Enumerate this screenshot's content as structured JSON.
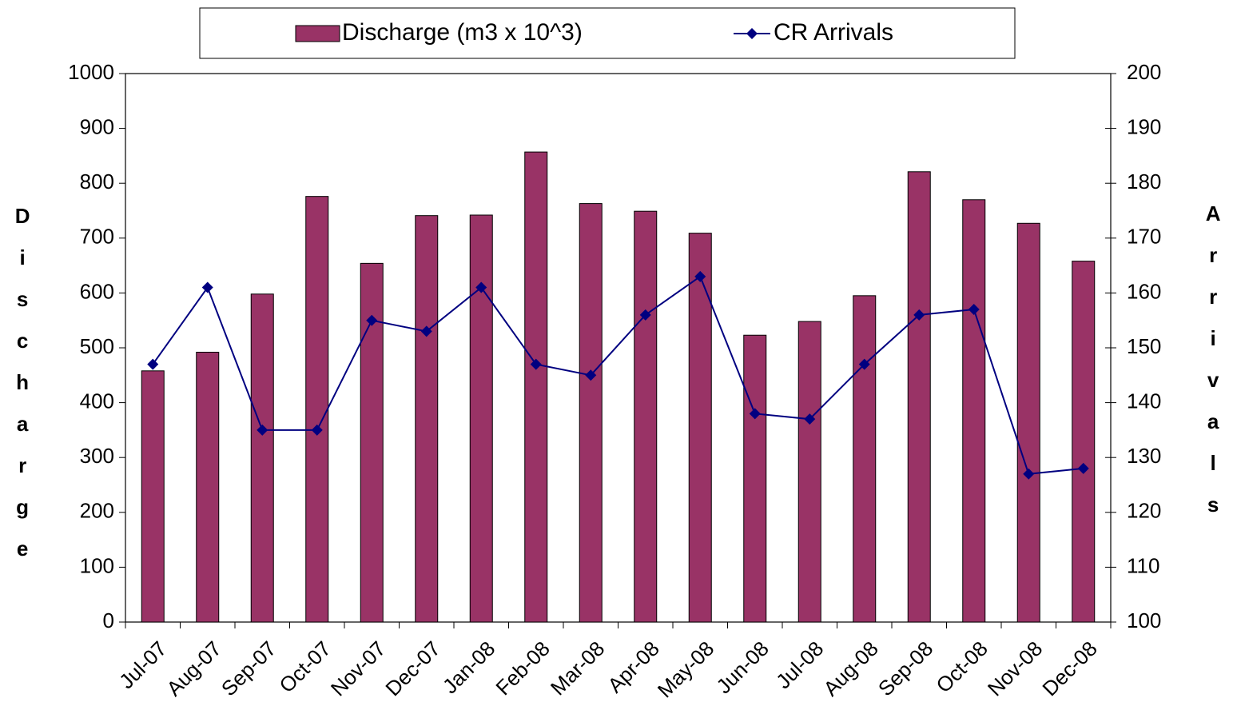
{
  "chart_data": {
    "type": "bar-line",
    "y_label": "Discharge",
    "y2_label": "Arrivals",
    "categories": [
      "Jul-07",
      "Aug-07",
      "Sep-07",
      "Oct-07",
      "Nov-07",
      "Dec-07",
      "Jan-08",
      "Feb-08",
      "Mar-08",
      "Apr-08",
      "May-08",
      "Jun-08",
      "Jul-08",
      "Aug-08",
      "Sep-08",
      "Oct-08",
      "Nov-08",
      "Dec-08"
    ],
    "series": [
      {
        "name": "Discharge (m3 x 10^3)",
        "type": "bar",
        "color": "#993366",
        "axis": "y",
        "values": [
          458,
          492,
          598,
          776,
          654,
          741,
          742,
          857,
          763,
          749,
          709,
          523,
          548,
          595,
          821,
          770,
          727,
          658
        ]
      },
      {
        "name": "CR Arrivals",
        "type": "line",
        "color": "#000080",
        "axis": "y2",
        "values": [
          147,
          161,
          135,
          135,
          155,
          153,
          161,
          147,
          145,
          156,
          163,
          138,
          137,
          147,
          156,
          157,
          127,
          128
        ]
      }
    ],
    "ylim": [
      0,
      1000
    ],
    "yticks": [
      0,
      100,
      200,
      300,
      400,
      500,
      600,
      700,
      800,
      900,
      1000
    ],
    "y2lim": [
      100,
      200
    ],
    "y2ticks": [
      100,
      110,
      120,
      130,
      140,
      150,
      160,
      170,
      180,
      190,
      200
    ],
    "grid": false,
    "legend": "top"
  }
}
